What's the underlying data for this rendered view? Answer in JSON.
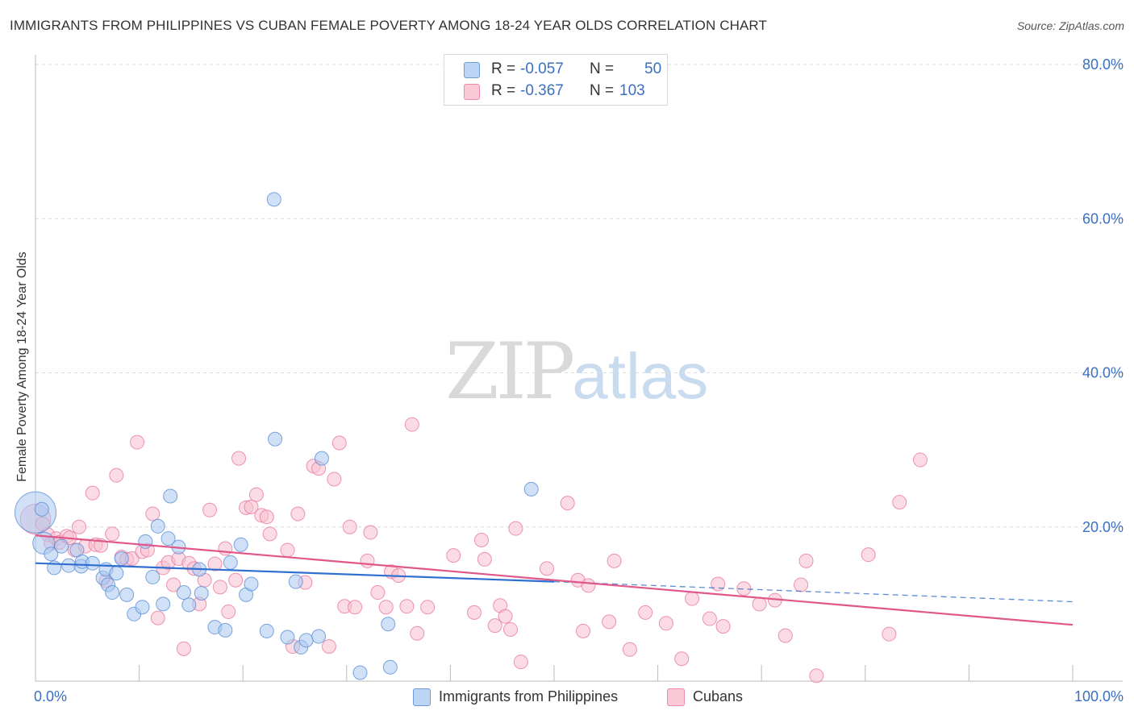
{
  "title": "IMMIGRANTS FROM PHILIPPINES VS CUBAN FEMALE POVERTY AMONG 18-24 YEAR OLDS CORRELATION CHART",
  "source": "Source: ZipAtlas.com",
  "watermark": {
    "zip": "ZIP",
    "atlas": "atlas"
  },
  "legend": {
    "rows": [
      {
        "r_label": "R =",
        "r_value": "-0.057",
        "n_label": "N =",
        "n_value": "50",
        "color": "#a9c8f0"
      },
      {
        "r_label": "R =",
        "r_value": "-0.367",
        "n_label": "N =",
        "n_value": "103",
        "color": "#f5b8cb"
      }
    ]
  },
  "bottom_legend": {
    "philippines": "Immigrants from Philippines",
    "cubans": "Cubans"
  },
  "chart_data": {
    "type": "scatter",
    "ylabel": "Female Poverty Among 18-24 Year Olds",
    "xlabel": "",
    "x_ticks": [
      "0.0%",
      "100.0%"
    ],
    "y_ticks": [
      "20.0%",
      "40.0%",
      "60.0%",
      "80.0%"
    ],
    "xlim": [
      0,
      100
    ],
    "ylim": [
      0,
      80
    ],
    "grid": true,
    "colors": {
      "philippines_fill": "#a9c8f0",
      "philippines_stroke": "#5a8fd6",
      "philippines_line": "#2f6fd0",
      "cubans_fill": "#f7bfd0",
      "cubans_stroke": "#e8799e",
      "cubans_line": "#e0578a",
      "tick_label": "#3a6fc4"
    },
    "series": [
      {
        "name": "Immigrants from Philippines",
        "trend": {
          "x0": 0,
          "y0": 15.3,
          "x1": 50,
          "y1": 12.9,
          "dashed_to_x": 100,
          "dashed_to_y": 10.3
        },
        "points": [
          [
            0,
            21.9,
            3
          ],
          [
            0.8,
            17.9,
            1.6
          ],
          [
            1.5,
            16.5,
            1
          ],
          [
            1.8,
            14.7,
            1
          ],
          [
            2.5,
            17.5,
            1
          ],
          [
            3.2,
            15.0,
            1
          ],
          [
            4.0,
            17.0,
            1
          ],
          [
            4.4,
            14.9,
            1
          ],
          [
            4.5,
            15.5,
            1
          ],
          [
            5.5,
            15.3,
            1
          ],
          [
            6.5,
            13.4,
            1
          ],
          [
            6.8,
            14.5,
            1
          ],
          [
            7.0,
            12.5,
            1
          ],
          [
            7.4,
            11.5,
            1
          ],
          [
            7.8,
            14.0,
            1
          ],
          [
            8.3,
            15.9,
            1
          ],
          [
            8.8,
            11.2,
            1
          ],
          [
            9.5,
            8.7,
            1
          ],
          [
            10.3,
            9.6,
            1
          ],
          [
            10.6,
            18.1,
            1
          ],
          [
            11.3,
            13.5,
            1
          ],
          [
            11.8,
            20.1,
            1
          ],
          [
            12.3,
            10.0,
            1
          ],
          [
            12.8,
            18.5,
            1
          ],
          [
            13.0,
            24.0,
            1
          ],
          [
            13.8,
            17.4,
            1
          ],
          [
            14.3,
            11.5,
            1
          ],
          [
            14.8,
            9.9,
            1
          ],
          [
            15.8,
            14.5,
            1
          ],
          [
            16.0,
            11.4,
            1
          ],
          [
            17.3,
            7.0,
            1
          ],
          [
            18.3,
            6.6,
            1
          ],
          [
            18.8,
            15.4,
            1
          ],
          [
            19.8,
            17.7,
            1
          ],
          [
            20.3,
            11.2,
            1
          ],
          [
            20.8,
            12.6,
            1
          ],
          [
            22.3,
            6.5,
            1
          ],
          [
            23.0,
            62.5,
            1
          ],
          [
            23.1,
            31.4,
            1
          ],
          [
            24.3,
            5.7,
            1
          ],
          [
            25.1,
            12.9,
            1
          ],
          [
            25.6,
            4.4,
            1
          ],
          [
            26.1,
            5.3,
            1
          ],
          [
            27.3,
            5.8,
            1
          ],
          [
            27.6,
            28.9,
            1
          ],
          [
            31.3,
            1.1,
            1
          ],
          [
            34.0,
            7.4,
            1
          ],
          [
            34.2,
            1.8,
            1
          ],
          [
            47.8,
            24.9,
            1
          ],
          [
            0.6,
            22.3,
            1
          ]
        ]
      },
      {
        "name": "Cubans",
        "trend": {
          "x0": 0,
          "y0": 18.9,
          "x1": 100,
          "y1": 7.3
        },
        "points": [
          [
            0,
            21.0,
            2.2
          ],
          [
            0.7,
            20.4,
            1
          ],
          [
            1.2,
            19.0,
            1
          ],
          [
            1.5,
            17.9,
            1
          ],
          [
            2.0,
            18.5,
            1
          ],
          [
            2.3,
            18.0,
            1
          ],
          [
            3.0,
            18.8,
            1
          ],
          [
            3.3,
            18.6,
            1
          ],
          [
            3.8,
            17.0,
            1
          ],
          [
            4.2,
            20.0,
            1
          ],
          [
            4.8,
            17.5,
            1
          ],
          [
            5.5,
            24.4,
            1
          ],
          [
            5.8,
            17.7,
            1
          ],
          [
            6.3,
            17.6,
            1
          ],
          [
            6.8,
            13.0,
            1
          ],
          [
            7.4,
            19.1,
            1
          ],
          [
            7.8,
            26.7,
            1
          ],
          [
            8.3,
            16.1,
            1
          ],
          [
            8.8,
            15.8,
            1
          ],
          [
            9.3,
            15.9,
            1
          ],
          [
            9.8,
            31.0,
            1
          ],
          [
            10.3,
            16.8,
            1
          ],
          [
            10.8,
            17.0,
            1
          ],
          [
            11.3,
            21.7,
            1
          ],
          [
            11.8,
            8.2,
            1
          ],
          [
            12.3,
            14.7,
            1
          ],
          [
            12.8,
            15.4,
            1
          ],
          [
            13.3,
            12.5,
            1
          ],
          [
            13.8,
            15.9,
            1
          ],
          [
            14.3,
            4.2,
            1
          ],
          [
            14.8,
            15.3,
            1
          ],
          [
            15.3,
            14.6,
            1
          ],
          [
            15.8,
            10.0,
            1
          ],
          [
            16.3,
            13.1,
            1
          ],
          [
            16.8,
            22.2,
            1
          ],
          [
            17.3,
            15.2,
            1
          ],
          [
            17.8,
            12.2,
            1
          ],
          [
            18.3,
            17.2,
            1
          ],
          [
            18.6,
            9.0,
            1
          ],
          [
            19.3,
            13.1,
            1
          ],
          [
            19.6,
            28.9,
            1
          ],
          [
            20.3,
            22.5,
            1
          ],
          [
            20.8,
            22.6,
            1
          ],
          [
            21.3,
            24.2,
            1
          ],
          [
            21.8,
            21.5,
            1
          ],
          [
            22.3,
            21.3,
            1
          ],
          [
            22.6,
            19.1,
            1
          ],
          [
            24.3,
            17.0,
            1
          ],
          [
            24.8,
            4.5,
            1
          ],
          [
            25.3,
            21.7,
            1
          ],
          [
            26.0,
            12.8,
            1
          ],
          [
            26.8,
            27.9,
            1
          ],
          [
            27.3,
            27.6,
            1
          ],
          [
            28.3,
            4.5,
            1
          ],
          [
            28.8,
            26.2,
            1
          ],
          [
            29.3,
            30.9,
            1
          ],
          [
            29.8,
            9.7,
            1
          ],
          [
            30.3,
            20.0,
            1
          ],
          [
            30.8,
            9.6,
            1
          ],
          [
            32.0,
            15.6,
            1
          ],
          [
            32.3,
            19.3,
            1
          ],
          [
            33.0,
            11.5,
            1
          ],
          [
            33.8,
            9.6,
            1
          ],
          [
            34.3,
            14.2,
            1
          ],
          [
            35.0,
            13.7,
            1
          ],
          [
            35.8,
            9.7,
            1
          ],
          [
            36.3,
            33.3,
            1
          ],
          [
            36.8,
            6.2,
            1
          ],
          [
            37.8,
            9.6,
            1
          ],
          [
            40.3,
            16.3,
            1
          ],
          [
            42.3,
            8.9,
            1
          ],
          [
            43.0,
            18.3,
            1
          ],
          [
            43.3,
            15.8,
            1
          ],
          [
            44.3,
            7.2,
            1
          ],
          [
            44.8,
            9.8,
            1
          ],
          [
            45.3,
            8.4,
            1
          ],
          [
            45.8,
            6.7,
            1
          ],
          [
            46.3,
            19.8,
            1
          ],
          [
            46.8,
            2.5,
            1
          ],
          [
            49.3,
            14.6,
            1
          ],
          [
            51.3,
            23.1,
            1
          ],
          [
            52.3,
            13.1,
            1
          ],
          [
            52.8,
            6.5,
            1
          ],
          [
            53.3,
            12.4,
            1
          ],
          [
            55.3,
            7.7,
            1
          ],
          [
            55.8,
            15.6,
            1
          ],
          [
            57.3,
            4.1,
            1
          ],
          [
            58.8,
            8.9,
            1
          ],
          [
            60.8,
            7.5,
            1
          ],
          [
            62.3,
            2.9,
            1
          ],
          [
            63.3,
            10.7,
            1
          ],
          [
            65.0,
            8.1,
            1
          ],
          [
            65.8,
            12.6,
            1
          ],
          [
            66.3,
            7.1,
            1
          ],
          [
            68.3,
            12.0,
            1
          ],
          [
            69.8,
            10.0,
            1
          ],
          [
            71.3,
            10.5,
            1
          ],
          [
            72.3,
            5.9,
            1
          ],
          [
            73.8,
            12.5,
            1
          ],
          [
            74.3,
            15.6,
            1
          ],
          [
            75.3,
            0.7,
            1
          ],
          [
            80.3,
            16.4,
            1
          ],
          [
            82.3,
            6.1,
            1
          ],
          [
            83.3,
            23.2,
            1
          ],
          [
            85.3,
            28.7,
            1
          ]
        ]
      }
    ]
  }
}
